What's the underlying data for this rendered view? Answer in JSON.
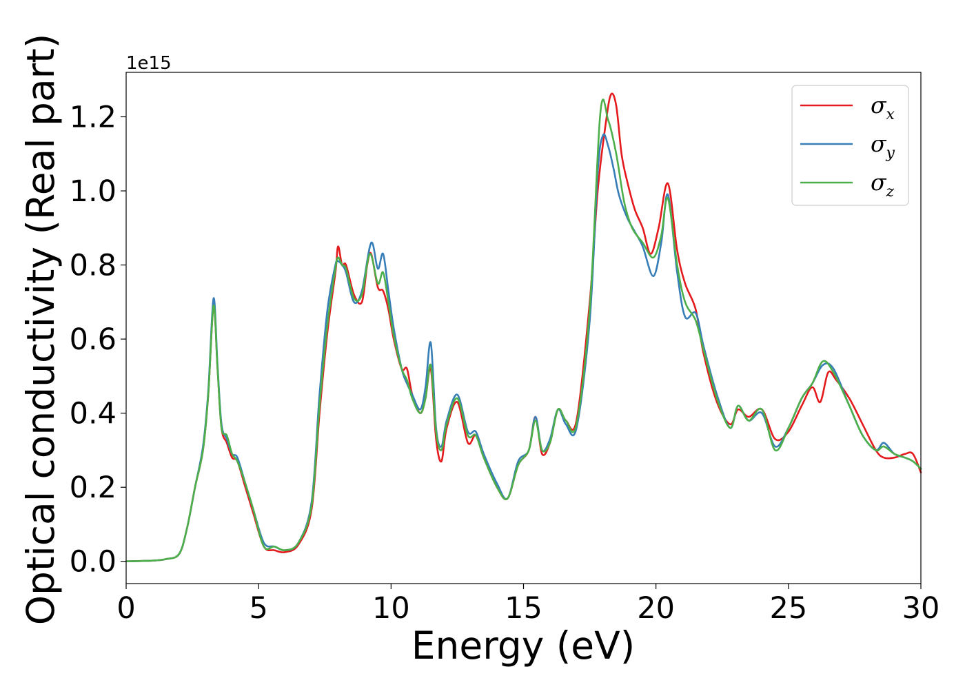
{
  "chart_data": {
    "type": "line",
    "title": "",
    "xlabel": "Energy (eV)",
    "ylabel": "Optical conductivity (Real part)",
    "y_offset_label": "1e15",
    "xlim": [
      0,
      30
    ],
    "ylim": [
      -0.06,
      1.32
    ],
    "x_ticks": [
      0,
      5,
      10,
      15,
      20,
      25,
      30
    ],
    "x_tick_labels": [
      "0",
      "5",
      "10",
      "15",
      "20",
      "25",
      "30"
    ],
    "y_ticks": [
      0.0,
      0.2,
      0.4,
      0.6,
      0.8,
      1.0,
      1.2
    ],
    "y_tick_labels": [
      "0.0",
      "0.2",
      "0.4",
      "0.6",
      "0.8",
      "1.0",
      "1.2"
    ],
    "grid": false,
    "legend_position": "top-right",
    "series": [
      {
        "name": "σx",
        "label_base": "σ",
        "label_sub": "x",
        "color": "#e41a1c",
        "x": [
          0,
          1.0,
          1.5,
          2.0,
          2.3,
          2.6,
          2.9,
          3.1,
          3.3,
          3.45,
          3.6,
          3.8,
          4.0,
          4.2,
          4.5,
          4.8,
          5.2,
          5.6,
          6.0,
          6.5,
          7.0,
          7.3,
          7.6,
          7.9,
          8.0,
          8.15,
          8.3,
          8.6,
          8.9,
          9.1,
          9.25,
          9.5,
          9.7,
          9.9,
          10.1,
          10.4,
          10.6,
          10.8,
          11.1,
          11.3,
          11.5,
          11.7,
          11.9,
          12.1,
          12.5,
          12.9,
          13.2,
          13.5,
          14.0,
          14.4,
          14.8,
          15.2,
          15.45,
          15.7,
          16.0,
          16.3,
          16.6,
          17.0,
          17.5,
          17.8,
          18.1,
          18.3,
          18.5,
          18.7,
          18.9,
          19.2,
          19.5,
          19.8,
          20.1,
          20.45,
          20.8,
          21.1,
          21.5,
          21.8,
          22.3,
          22.8,
          23.1,
          23.5,
          24.0,
          24.5,
          25.0,
          25.5,
          25.9,
          26.2,
          26.5,
          26.8,
          27.3,
          27.8,
          28.3,
          28.6,
          29.0,
          29.4,
          29.7,
          30.0
        ],
        "y": [
          0,
          0.002,
          0.006,
          0.02,
          0.09,
          0.2,
          0.3,
          0.45,
          0.69,
          0.52,
          0.36,
          0.32,
          0.28,
          0.27,
          0.2,
          0.13,
          0.04,
          0.03,
          0.025,
          0.045,
          0.14,
          0.4,
          0.62,
          0.78,
          0.85,
          0.8,
          0.8,
          0.72,
          0.7,
          0.8,
          0.83,
          0.74,
          0.73,
          0.68,
          0.6,
          0.52,
          0.52,
          0.45,
          0.4,
          0.44,
          0.52,
          0.33,
          0.27,
          0.36,
          0.43,
          0.32,
          0.34,
          0.28,
          0.2,
          0.17,
          0.26,
          0.3,
          0.39,
          0.29,
          0.32,
          0.41,
          0.38,
          0.38,
          0.7,
          1.0,
          1.18,
          1.26,
          1.23,
          1.1,
          1.03,
          0.95,
          0.9,
          0.83,
          0.9,
          1.02,
          0.84,
          0.75,
          0.68,
          0.56,
          0.43,
          0.37,
          0.41,
          0.39,
          0.41,
          0.33,
          0.35,
          0.42,
          0.47,
          0.43,
          0.51,
          0.49,
          0.44,
          0.37,
          0.3,
          0.28,
          0.28,
          0.29,
          0.29,
          0.24
        ]
      },
      {
        "name": "σy",
        "label_base": "σ",
        "label_sub": "y",
        "color": "#377eb8",
        "x": [
          0,
          1.0,
          1.5,
          2.0,
          2.3,
          2.6,
          2.9,
          3.1,
          3.3,
          3.45,
          3.6,
          3.8,
          4.0,
          4.2,
          4.5,
          4.8,
          5.2,
          5.6,
          6.0,
          6.5,
          7.0,
          7.3,
          7.6,
          7.9,
          8.0,
          8.15,
          8.3,
          8.6,
          8.9,
          9.25,
          9.5,
          9.7,
          9.9,
          10.1,
          10.4,
          10.6,
          10.8,
          11.1,
          11.3,
          11.5,
          11.7,
          11.9,
          12.1,
          12.5,
          12.9,
          13.2,
          13.5,
          14.0,
          14.4,
          14.8,
          15.2,
          15.45,
          15.7,
          16.0,
          16.3,
          16.6,
          17.0,
          17.5,
          17.8,
          18.0,
          18.2,
          18.4,
          18.6,
          18.9,
          19.2,
          19.5,
          19.9,
          20.2,
          20.45,
          20.8,
          21.1,
          21.5,
          21.8,
          22.3,
          22.8,
          23.1,
          23.5,
          24.0,
          24.5,
          25.0,
          25.5,
          25.9,
          26.3,
          26.7,
          27.3,
          27.8,
          28.3,
          28.6,
          29.0,
          29.4,
          29.7,
          30.0
        ],
        "y": [
          0,
          0.002,
          0.006,
          0.02,
          0.09,
          0.2,
          0.31,
          0.46,
          0.71,
          0.53,
          0.37,
          0.33,
          0.29,
          0.28,
          0.21,
          0.14,
          0.05,
          0.04,
          0.03,
          0.05,
          0.16,
          0.45,
          0.68,
          0.8,
          0.81,
          0.8,
          0.78,
          0.7,
          0.73,
          0.86,
          0.79,
          0.83,
          0.73,
          0.63,
          0.52,
          0.48,
          0.45,
          0.41,
          0.47,
          0.59,
          0.36,
          0.31,
          0.38,
          0.45,
          0.35,
          0.35,
          0.29,
          0.21,
          0.17,
          0.27,
          0.3,
          0.39,
          0.3,
          0.33,
          0.41,
          0.37,
          0.36,
          0.65,
          1.05,
          1.15,
          1.12,
          1.06,
          0.99,
          0.93,
          0.89,
          0.85,
          0.77,
          0.86,
          0.99,
          0.78,
          0.66,
          0.67,
          0.58,
          0.45,
          0.36,
          0.42,
          0.38,
          0.4,
          0.31,
          0.36,
          0.44,
          0.48,
          0.53,
          0.52,
          0.42,
          0.34,
          0.3,
          0.32,
          0.29,
          0.28,
          0.27,
          0.25
        ]
      },
      {
        "name": "σz",
        "label_base": "σ",
        "label_sub": "z",
        "color": "#4daf4a",
        "x": [
          0,
          1.0,
          1.5,
          2.0,
          2.3,
          2.6,
          2.9,
          3.1,
          3.3,
          3.45,
          3.6,
          3.8,
          4.0,
          4.2,
          4.5,
          4.8,
          5.2,
          5.6,
          6.0,
          6.5,
          7.0,
          7.3,
          7.6,
          7.9,
          8.0,
          8.15,
          8.3,
          8.6,
          8.9,
          9.2,
          9.5,
          9.7,
          9.9,
          10.1,
          10.4,
          10.6,
          10.8,
          11.1,
          11.3,
          11.5,
          11.7,
          11.9,
          12.1,
          12.5,
          12.9,
          13.2,
          13.5,
          14.0,
          14.4,
          14.8,
          15.2,
          15.45,
          15.7,
          16.0,
          16.3,
          16.6,
          17.0,
          17.5,
          17.9,
          18.2,
          18.5,
          18.8,
          19.1,
          19.5,
          19.9,
          20.2,
          20.45,
          20.8,
          21.1,
          21.5,
          21.8,
          22.3,
          22.8,
          23.1,
          23.5,
          24.0,
          24.5,
          25.0,
          25.5,
          25.9,
          26.3,
          26.7,
          27.3,
          27.8,
          28.3,
          28.6,
          29.0,
          29.4,
          29.7,
          30.0
        ],
        "y": [
          0,
          0.002,
          0.006,
          0.02,
          0.09,
          0.2,
          0.3,
          0.45,
          0.69,
          0.52,
          0.36,
          0.34,
          0.29,
          0.27,
          0.21,
          0.14,
          0.04,
          0.04,
          0.03,
          0.05,
          0.15,
          0.42,
          0.64,
          0.79,
          0.82,
          0.8,
          0.79,
          0.71,
          0.72,
          0.83,
          0.75,
          0.78,
          0.7,
          0.61,
          0.52,
          0.49,
          0.44,
          0.4,
          0.44,
          0.53,
          0.35,
          0.3,
          0.37,
          0.44,
          0.34,
          0.34,
          0.28,
          0.2,
          0.17,
          0.26,
          0.3,
          0.38,
          0.3,
          0.32,
          0.41,
          0.38,
          0.37,
          0.68,
          1.21,
          1.19,
          1.1,
          0.97,
          0.9,
          0.86,
          0.82,
          0.88,
          0.98,
          0.8,
          0.7,
          0.65,
          0.57,
          0.44,
          0.36,
          0.42,
          0.38,
          0.41,
          0.3,
          0.36,
          0.44,
          0.48,
          0.54,
          0.51,
          0.42,
          0.34,
          0.3,
          0.31,
          0.29,
          0.28,
          0.27,
          0.25
        ]
      }
    ]
  }
}
